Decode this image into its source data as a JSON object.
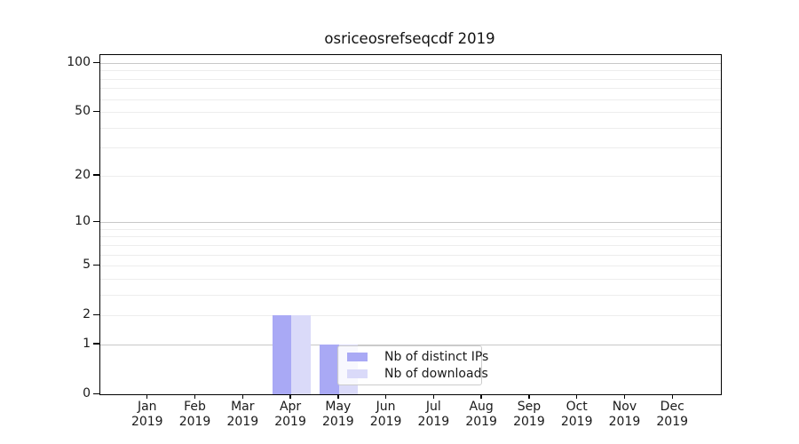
{
  "title": "osriceosrefseqcdf 2019",
  "legend": {
    "items": [
      {
        "label": "Nb of distinct IPs",
        "color": "#a9a9f5"
      },
      {
        "label": "Nb of downloads",
        "color": "#dadaf9"
      }
    ]
  },
  "chart_data": {
    "type": "bar",
    "title": "osriceosrefseqcdf 2019",
    "months": [
      "Jan",
      "Feb",
      "Mar",
      "Apr",
      "May",
      "Jun",
      "Jul",
      "Aug",
      "Sep",
      "Oct",
      "Nov",
      "Dec"
    ],
    "year": "2019",
    "series": [
      {
        "name": "Nb of distinct IPs",
        "color": "#a9a9f5",
        "values": [
          0,
          0,
          0,
          2,
          1,
          0,
          0,
          0,
          0,
          0,
          0,
          0
        ]
      },
      {
        "name": "Nb of downloads",
        "color": "#dadaf9",
        "values": [
          0,
          0,
          0,
          2,
          1,
          0,
          0,
          0,
          0,
          0,
          0,
          0
        ]
      }
    ],
    "y_scale": "log1p",
    "y_max": 100,
    "y_ticks": [
      0,
      1,
      2,
      5,
      10,
      20,
      50,
      100
    ],
    "grid_major": [
      1,
      10,
      100
    ],
    "grid_minor": [
      2,
      3,
      4,
      5,
      6,
      7,
      8,
      9,
      20,
      30,
      40,
      50,
      60,
      70,
      80,
      90
    ],
    "grid_major_color": "#c8c8c8",
    "grid_minor_color": "#ededed",
    "legend_position": "inside lower center",
    "xlabel": "",
    "ylabel": ""
  }
}
